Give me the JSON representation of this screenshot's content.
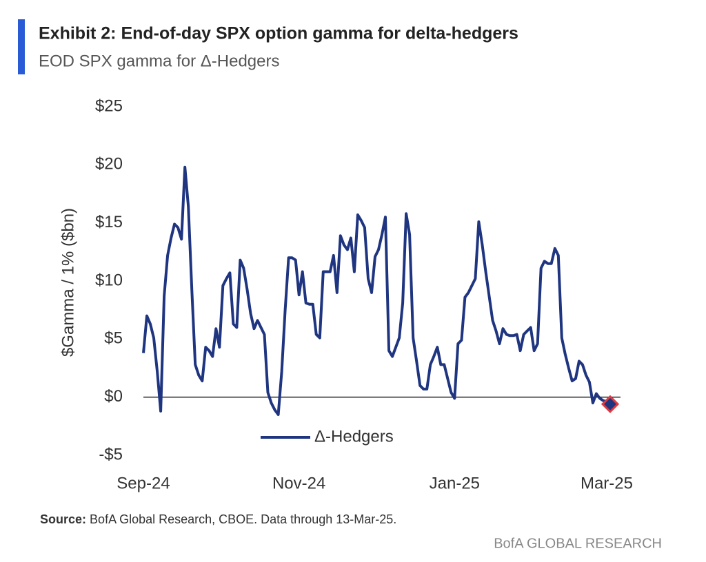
{
  "title": "Exhibit 2: End-of-day SPX option gamma for delta-hedgers",
  "subtitle": "EOD SPX gamma for Δ-Hedgers",
  "source": {
    "label": "Source:",
    "text": "BofA Global Research, CBOE. Data through 13-Mar-25."
  },
  "brand": "BofA GLOBAL RESEARCH",
  "chart_data": {
    "type": "line",
    "ylabel": "$Gamma / 1% ($bn)",
    "ylim": [
      -5,
      25
    ],
    "yticks": [
      {
        "value": -5,
        "label": "-$5"
      },
      {
        "value": 0,
        "label": "$0"
      },
      {
        "value": 5,
        "label": "$5"
      },
      {
        "value": 10,
        "label": "$10"
      },
      {
        "value": 15,
        "label": "$15"
      },
      {
        "value": 20,
        "label": "$20"
      },
      {
        "value": 25,
        "label": "$25"
      }
    ],
    "zero_line": true,
    "last_point_marker": {
      "fill": "#1f3580",
      "edgecolor": "#e03a3e"
    },
    "categories": [
      "Sep-24",
      null,
      null,
      null,
      null,
      null,
      null,
      null,
      null,
      null,
      null,
      null,
      null,
      null,
      null,
      null,
      null,
      null,
      null,
      null,
      null,
      null,
      null,
      null,
      null,
      null,
      null,
      null,
      null,
      null,
      null,
      null,
      null,
      null,
      null,
      null,
      null,
      null,
      null,
      null,
      null,
      null,
      null,
      null,
      null,
      "Nov-24",
      null,
      null,
      null,
      null,
      null,
      null,
      null,
      null,
      null,
      null,
      null,
      null,
      null,
      null,
      null,
      null,
      null,
      null,
      null,
      null,
      null,
      null,
      null,
      null,
      null,
      null,
      null,
      null,
      null,
      null,
      null,
      null,
      null,
      null,
      null,
      null,
      null,
      null,
      null,
      null,
      null,
      null,
      null,
      null,
      "Jan-25",
      null,
      null,
      null,
      null,
      null,
      null,
      null,
      null,
      null,
      null,
      null,
      null,
      null,
      null,
      null,
      null,
      null,
      null,
      null,
      null,
      null,
      null,
      null,
      null,
      null,
      null,
      null,
      null,
      null,
      null,
      null,
      null,
      null,
      null,
      null,
      null,
      null,
      null,
      null,
      null,
      null,
      null,
      null,
      "Mar-25",
      null
    ],
    "series": [
      {
        "name": "Δ-Hedgers",
        "color": "#1f3580",
        "values": [
          3.8,
          7.0,
          6.3,
          5.1,
          2.2,
          -1.2,
          8.7,
          12.2,
          13.7,
          14.9,
          14.6,
          13.6,
          19.8,
          16.4,
          9.3,
          2.8,
          1.9,
          1.4,
          4.3,
          4.0,
          3.5,
          5.9,
          4.3,
          9.6,
          10.2,
          10.7,
          6.3,
          6.0,
          11.8,
          11.1,
          9.3,
          7.2,
          5.9,
          6.6,
          6.0,
          5.4,
          0.4,
          -0.5,
          -1.1,
          -1.5,
          2.2,
          7.5,
          12.0,
          12.0,
          11.8,
          8.8,
          10.8,
          8.1,
          8.0,
          8.0,
          5.4,
          5.1,
          10.8,
          10.8,
          10.8,
          12.2,
          9.0,
          13.9,
          13.1,
          12.7,
          13.7,
          10.8,
          15.7,
          15.2,
          14.6,
          10.2,
          9.0,
          12.1,
          12.7,
          14.0,
          15.5,
          4.0,
          3.5,
          4.3,
          5.1,
          8.1,
          15.8,
          14.0,
          5.1,
          3.1,
          1.0,
          0.7,
          0.7,
          2.8,
          3.5,
          4.3,
          2.8,
          2.8,
          1.6,
          0.4,
          -0.1,
          4.6,
          4.9,
          8.6,
          9.0,
          9.6,
          10.2,
          15.1,
          13.1,
          10.8,
          8.7,
          6.6,
          5.7,
          4.6,
          5.9,
          5.4,
          5.3,
          5.3,
          5.4,
          4.0,
          5.4,
          5.7,
          6.0,
          4.0,
          4.6,
          11.1,
          11.7,
          11.5,
          11.5,
          12.8,
          12.2,
          5.1,
          3.7,
          2.5,
          1.4,
          1.6,
          3.1,
          2.8,
          1.9,
          1.3,
          -0.5,
          0.3,
          -0.1,
          -0.3,
          -0.4,
          -0.6
        ]
      }
    ]
  }
}
